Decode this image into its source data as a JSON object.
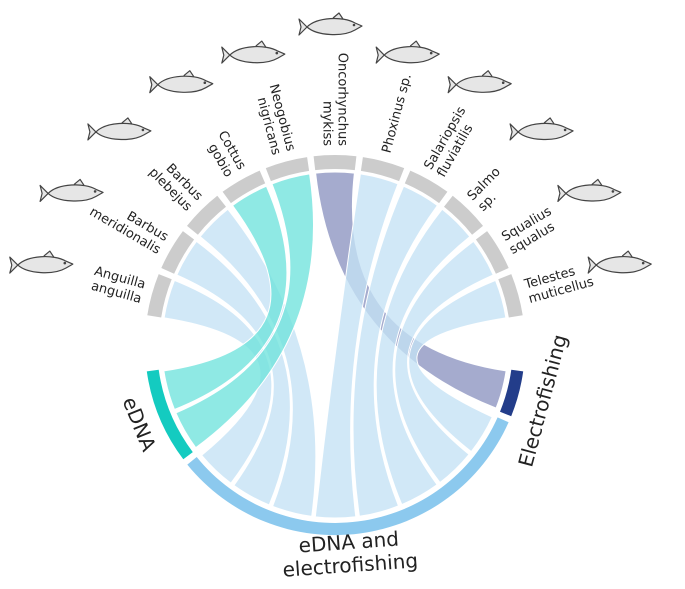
{
  "species": [
    {
      "label": [
        "Anguilla",
        "anguilla"
      ],
      "group": 2
    },
    {
      "label": [
        "Barbus",
        "meridionalis"
      ],
      "group": 2
    },
    {
      "label": [
        "Barbus",
        "plebejus"
      ],
      "group": 2
    },
    {
      "label": [
        "Cottus",
        "gobio"
      ],
      "group": 0
    },
    {
      "label": [
        "Neogobius",
        "nigricans"
      ],
      "group": 0
    },
    {
      "label": [
        "Oncorhynchus",
        "mykiss"
      ],
      "group": 1
    },
    {
      "label": [
        "Phoxinus sp."
      ],
      "group": 2
    },
    {
      "label": [
        "Salariopsis",
        "fluviatilis"
      ],
      "group": 2
    },
    {
      "label": [
        "Salmo",
        "sp."
      ],
      "group": 2
    },
    {
      "label": [
        "Squalius",
        "squalus"
      ],
      "group": 2
    },
    {
      "label": [
        "Telestes",
        "muticellus"
      ],
      "group": 2
    }
  ],
  "groups": [
    {
      "label": [
        "eDNA"
      ],
      "color": "#14cbc0",
      "chord_color": "#6fe3dc"
    },
    {
      "label": [
        "Electrofishing"
      ],
      "color": "#233d8a",
      "chord_color": "#8c93c0"
    },
    {
      "label": [
        "eDNA and",
        "electrofishing"
      ],
      "color": "#8cc9ee",
      "chord_color": "#c4e2f5"
    }
  ]
}
